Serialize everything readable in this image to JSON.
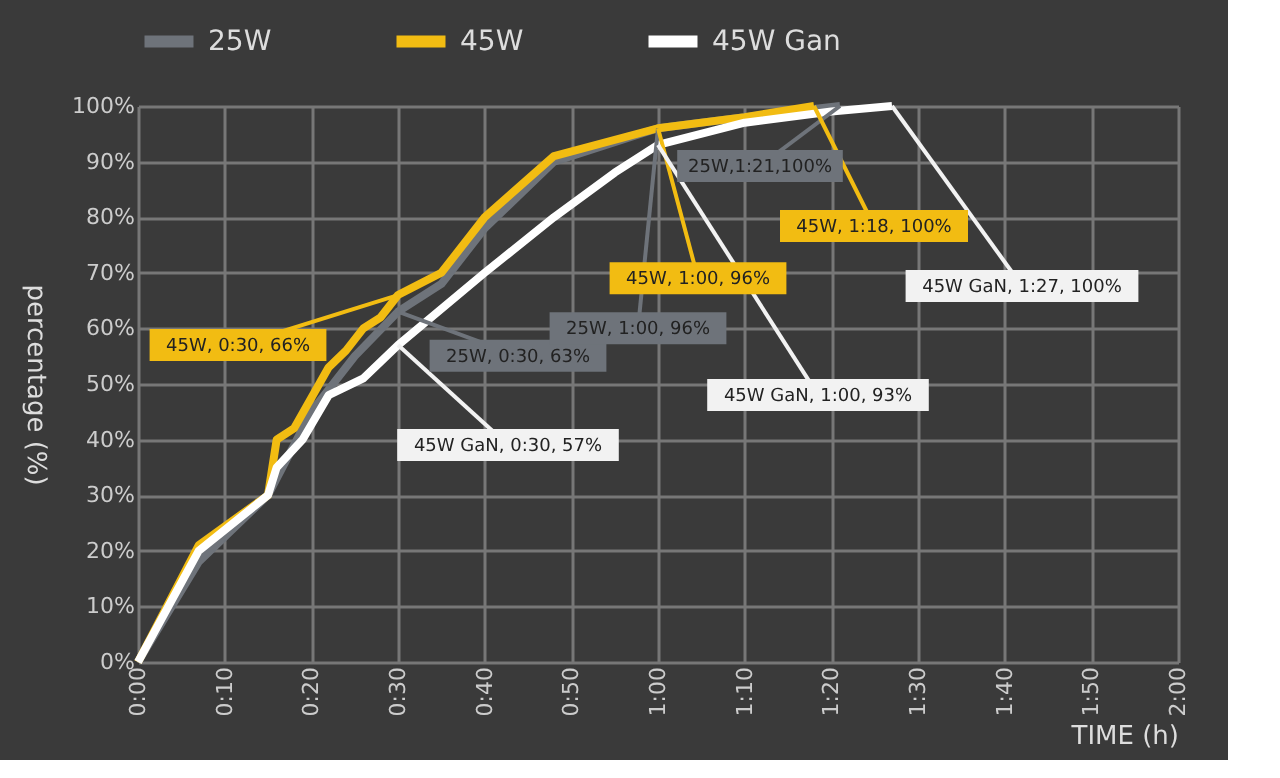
{
  "chart_data": {
    "type": "line",
    "xlabel": "TIME (h)",
    "ylabel": "percentage (%)",
    "xlim": [
      0,
      120
    ],
    "ylim": [
      0,
      100
    ],
    "xticks": [
      {
        "value": 0,
        "label": "0:00"
      },
      {
        "value": 10,
        "label": "0:10"
      },
      {
        "value": 20,
        "label": "0:20"
      },
      {
        "value": 30,
        "label": "0:30"
      },
      {
        "value": 40,
        "label": "0:40"
      },
      {
        "value": 50,
        "label": "0:50"
      },
      {
        "value": 60,
        "label": "1:00"
      },
      {
        "value": 70,
        "label": "1:10"
      },
      {
        "value": 80,
        "label": "1:20"
      },
      {
        "value": 90,
        "label": "1:30"
      },
      {
        "value": 100,
        "label": "1:40"
      },
      {
        "value": 110,
        "label": "1:50"
      },
      {
        "value": 120,
        "label": "2:00"
      }
    ],
    "yticks": [
      {
        "value": 0,
        "label": "0%"
      },
      {
        "value": 10,
        "label": "10%"
      },
      {
        "value": 20,
        "label": "20%"
      },
      {
        "value": 30,
        "label": "30%"
      },
      {
        "value": 40,
        "label": "40%"
      },
      {
        "value": 50,
        "label": "50%"
      },
      {
        "value": 60,
        "label": "60%"
      },
      {
        "value": 70,
        "label": "70%"
      },
      {
        "value": 80,
        "label": "80%"
      },
      {
        "value": 90,
        "label": "90%"
      },
      {
        "value": 100,
        "label": "100%"
      }
    ],
    "grid": true,
    "legend": "top",
    "marker": "none",
    "line_style": "solid",
    "series": [
      {
        "name": "25W",
        "color": "#6e737a",
        "x": [
          0,
          7,
          15,
          20,
          25,
          30,
          35,
          40,
          48,
          60,
          70,
          81
        ],
        "values": [
          0,
          18,
          30,
          45,
          55,
          63,
          68,
          78,
          90,
          96,
          98,
          100
        ]
      },
      {
        "name": "45W",
        "color": "#f2bc12",
        "x": [
          0,
          7,
          15,
          16,
          18,
          22,
          24,
          26,
          28,
          30,
          35,
          40,
          48,
          60,
          70,
          78
        ],
        "values": [
          0,
          21,
          30,
          40,
          42,
          53,
          56,
          60,
          62,
          66,
          70,
          80,
          91,
          96,
          98,
          100
        ]
      },
      {
        "name": "45W Gan",
        "color": "#ffffff",
        "x": [
          0,
          7,
          15,
          16,
          19,
          22,
          26,
          30,
          40,
          48,
          55,
          60,
          70,
          80,
          87
        ],
        "values": [
          0,
          20,
          30,
          35,
          40,
          48,
          51,
          57,
          70,
          80,
          88,
          93,
          97,
          99,
          100
        ]
      }
    ],
    "annotations": [
      {
        "text": "45W, 0:30, 66%",
        "x": 30,
        "y": 66
      },
      {
        "text": "25W, 0:30, 63%",
        "x": 30,
        "y": 63
      },
      {
        "text": "45W GaN, 0:30, 57%",
        "x": 30,
        "y": 57
      },
      {
        "text": "25W, 1:00, 96%",
        "x": 60,
        "y": 96
      },
      {
        "text": "45W, 1:00, 96%",
        "x": 60,
        "y": 96
      },
      {
        "text": "45W GaN, 1:00, 93%",
        "x": 60,
        "y": 93
      },
      {
        "text": "25W,1:21,100%",
        "x": 81,
        "y": 100
      },
      {
        "text": "45W, 1:18, 100%",
        "x": 78,
        "y": 100
      },
      {
        "text": "45W GaN, 1:27, 100%",
        "x": 87,
        "y": 100
      }
    ]
  }
}
